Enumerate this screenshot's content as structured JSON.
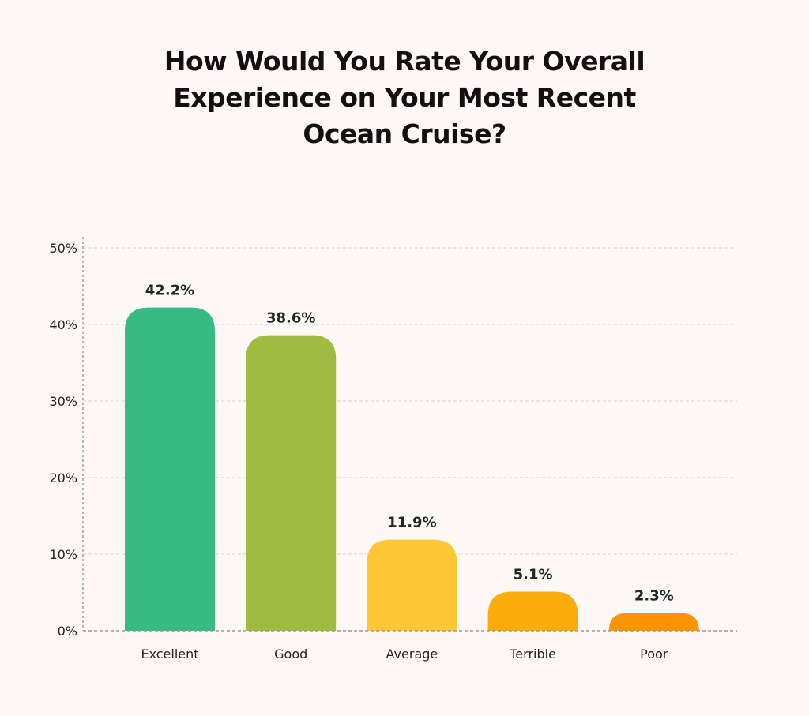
{
  "chart_data": {
    "type": "bar",
    "title": [
      "How Would You Rate Your Overall",
      "Experience on Your Most Recent",
      "Ocean Cruise?"
    ],
    "categories": [
      "Excellent",
      "Good",
      "Average",
      "Terrible",
      "Poor"
    ],
    "values": [
      42.2,
      38.6,
      11.9,
      5.1,
      2.3
    ],
    "data_labels": [
      "42.2%",
      "38.6%",
      "11.9%",
      "5.1%",
      "2.3%"
    ],
    "colors": [
      "#38bb83",
      "#a0bb41",
      "#fcc634",
      "#fcac0a",
      "#fc9402"
    ],
    "ylim": [
      0,
      50
    ],
    "yticks": [
      0,
      10,
      20,
      30,
      40,
      50
    ],
    "ytick_labels": [
      "0%",
      "10%",
      "20%",
      "30%",
      "40%",
      "50%"
    ],
    "xlabel": "",
    "ylabel": "",
    "grid": true
  }
}
